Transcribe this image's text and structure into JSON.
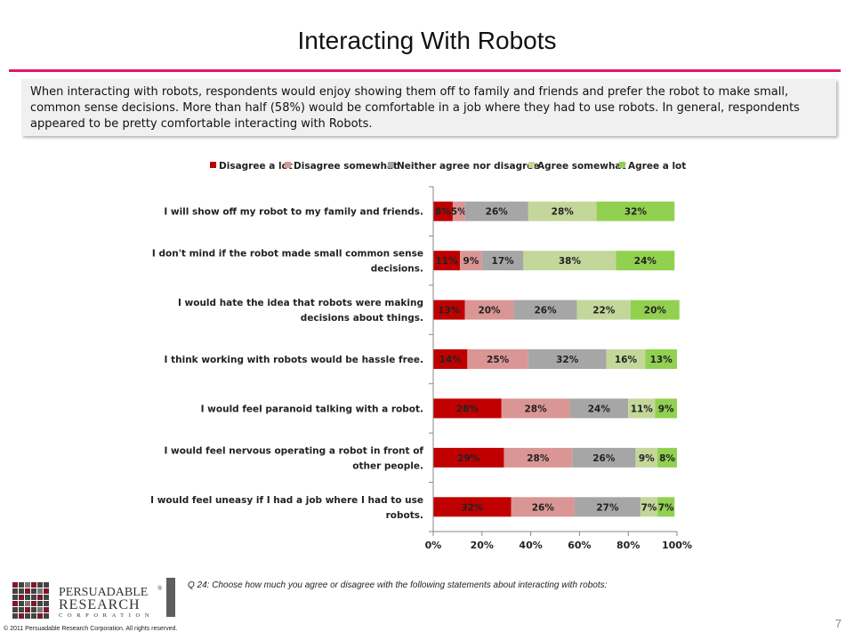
{
  "page": {
    "title": "Interacting With Robots",
    "summary": "When interacting with robots, respondents would enjoy showing them off to family and friends and prefer the robot to make small, common sense decisions.   More than half (58%) would be comfortable in a job where they had to use robots. In general, respondents appeared to be pretty comfortable interacting with Robots.",
    "question": "Q 24:  Choose how much you agree or disagree with the following statements about interacting with robots:",
    "copyright": "© 2011 Persuadable  Research Corporation.  All rights reserved.",
    "page_number": "7",
    "logo": {
      "line1": "PERSUADABLE",
      "registered": "®",
      "line2": "RESEARCH",
      "line3": "CORPORATION"
    }
  },
  "chart_data": {
    "type": "bar",
    "orientation": "horizontal",
    "stacked": "percent",
    "categories": [
      "I will show off my robot to my family and friends.",
      "I don't mind if the robot made small common sense decisions.",
      "I would hate the idea that robots were making decisions about things.",
      "I think working with robots would be hassle free.",
      "I would feel paranoid talking with a robot.",
      "I would feel nervous operating a robot in front of other people.",
      "I would feel uneasy if I had a job where I had to use robots."
    ],
    "category_lines": [
      [
        "I will show off my robot to my family and friends."
      ],
      [
        "I don't mind if the robot made small common sense",
        "decisions."
      ],
      [
        "I would hate the idea that robots were making",
        "decisions about things."
      ],
      [
        "I think working with robots would be hassle free."
      ],
      [
        "I would feel paranoid talking with a robot."
      ],
      [
        "I would feel nervous operating a robot in front of",
        "other people."
      ],
      [
        "I would feel uneasy if I had a job where I had to use",
        "robots."
      ]
    ],
    "series": [
      {
        "name": "Disagree a lot",
        "color": "#c00000",
        "values": [
          8,
          11,
          13,
          14,
          28,
          29,
          32
        ]
      },
      {
        "name": "Disagree somewhat",
        "color": "#da9694",
        "values": [
          5,
          9,
          20,
          25,
          28,
          28,
          26
        ]
      },
      {
        "name": "Neither agree nor disagree",
        "color": "#a6a6a6",
        "values": [
          26,
          17,
          26,
          32,
          24,
          26,
          27
        ]
      },
      {
        "name": "Agree somewhat",
        "color": "#c4d79b",
        "values": [
          28,
          38,
          22,
          16,
          11,
          9,
          7
        ]
      },
      {
        "name": "Agree a lot",
        "color": "#92d050",
        "values": [
          32,
          24,
          20,
          13,
          9,
          8,
          7
        ]
      }
    ],
    "xlim": [
      0,
      100
    ],
    "x_ticks": [
      "0%",
      "20%",
      "40%",
      "60%",
      "80%",
      "100%"
    ],
    "data_label_suffix": "%",
    "legend_position": "top",
    "grid": false
  }
}
